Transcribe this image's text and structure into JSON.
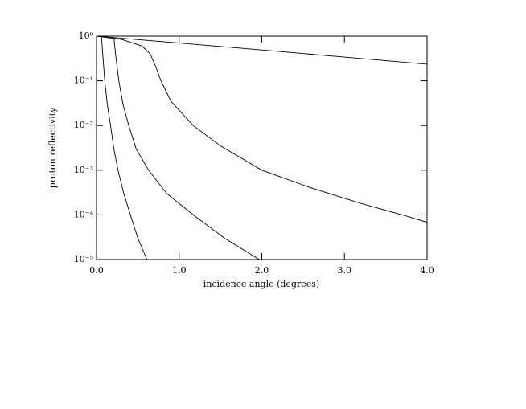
{
  "chart_data": {
    "type": "line",
    "xlabel": "incidence angle (degrees)",
    "ylabel": "proton reflectivity",
    "xlim": [
      0,
      4
    ],
    "ylim": [
      1e-05,
      1
    ],
    "ylog": true,
    "color": "#000000",
    "xticks": [
      {
        "value": 0,
        "label": "0.0"
      },
      {
        "value": 1,
        "label": "1.0"
      },
      {
        "value": 2,
        "label": "2.0"
      },
      {
        "value": 3,
        "label": "3.0"
      },
      {
        "value": 4,
        "label": "4.0"
      }
    ],
    "yticks": [
      {
        "value": 1e-05,
        "label": "10⁻⁵"
      },
      {
        "value": 0.0001,
        "label": "10⁻⁴"
      },
      {
        "value": 0.001,
        "label": "10⁻³"
      },
      {
        "value": 0.01,
        "label": "10⁻²"
      },
      {
        "value": 0.1,
        "label": "10⁻¹"
      },
      {
        "value": 1,
        "label": "10⁰"
      }
    ],
    "series": [
      {
        "x": [
          0.06,
          0.08,
          0.1,
          0.13,
          0.17,
          0.21,
          0.26,
          0.33,
          0.41,
          0.5,
          0.61
        ],
        "values": [
          1,
          0.3,
          0.1,
          0.03,
          0.01,
          0.003,
          0.001,
          0.0003,
          0.0001,
          3e-05,
          1e-05
        ]
      },
      {
        "x": [
          0.21,
          0.23,
          0.27,
          0.32,
          0.39,
          0.48,
          0.63,
          0.85,
          1.17,
          1.55,
          1.97
        ],
        "values": [
          0.95,
          0.4,
          0.1,
          0.03,
          0.01,
          0.003,
          0.001,
          0.0003,
          0.0001,
          3e-05,
          1e-05
        ]
      },
      {
        "x": [
          0,
          0.3,
          0.55,
          0.65,
          0.72,
          0.78,
          0.9,
          1.17,
          1.5,
          2.0,
          2.6,
          3.2,
          3.7,
          4.0
        ],
        "values": [
          1,
          0.85,
          0.6,
          0.4,
          0.2,
          0.1,
          0.035,
          0.01,
          0.0035,
          0.001,
          0.0004,
          0.00018,
          0.0001,
          6.8e-05
        ]
      },
      {
        "x": [
          0,
          1,
          2,
          3,
          4
        ],
        "values": [
          1,
          0.7,
          0.49,
          0.34,
          0.235
        ]
      }
    ]
  }
}
